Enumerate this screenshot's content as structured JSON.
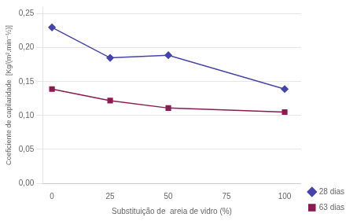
{
  "chart_data": {
    "type": "line",
    "xlabel": "Substituição de  areia de vidro (%)",
    "ylabel": "Coeficiente de capilaridade  [Kg/(m².min⁻½)]",
    "x": [
      0,
      25,
      50,
      100
    ],
    "series": [
      {
        "name": "28 dias",
        "color": "#4444aa",
        "marker": "diamond",
        "values": [
          0.23,
          0.185,
          0.189,
          0.139
        ]
      },
      {
        "name": "63 dias",
        "color": "#8b1a52",
        "marker": "square",
        "values": [
          0.139,
          0.122,
          0.111,
          0.105
        ]
      }
    ],
    "xlim": [
      -4,
      107
    ],
    "ylim": [
      0.0,
      0.26
    ],
    "xticks": [
      0,
      25,
      50,
      75,
      100
    ],
    "yticks": [
      {
        "value": 0.0,
        "label": "0,00"
      },
      {
        "value": 0.05,
        "label": "0,05"
      },
      {
        "value": 0.1,
        "label": "0,10"
      },
      {
        "value": 0.15,
        "label": "0,15"
      },
      {
        "value": 0.2,
        "label": "0,20"
      },
      {
        "value": 0.25,
        "label": "0,25"
      }
    ],
    "grid": "y",
    "legend": "lower right"
  }
}
